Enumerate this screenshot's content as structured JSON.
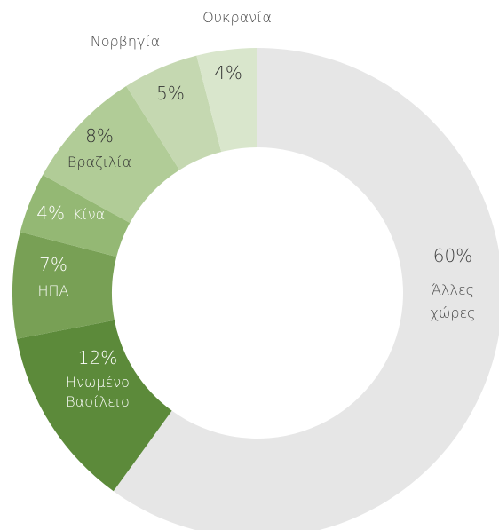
{
  "chart_data": {
    "type": "donut",
    "title": "",
    "unit": "%",
    "slices": [
      {
        "value": 60,
        "label_pct": "60%",
        "label_lines": [
          "Άλλες",
          "χώρες"
        ],
        "color": "#e6e6e6",
        "text_color": "#444444"
      },
      {
        "value": 12,
        "label_pct": "12%",
        "label_lines": [
          "Ηνωμένο",
          "Βασίλειο"
        ],
        "color": "#5c8a3a",
        "text_color": "#ffffff"
      },
      {
        "value": 7,
        "label_pct": "7%",
        "label_lines": [
          "ΗΠΑ"
        ],
        "color": "#78a055",
        "text_color": "#ffffff"
      },
      {
        "value": 4,
        "label_pct": "4%",
        "label_lines": [
          "Κίνα"
        ],
        "color": "#94b874",
        "text_color": "#ffffff"
      },
      {
        "value": 8,
        "label_pct": "8%",
        "label_lines": [
          "Βραζιλία"
        ],
        "color": "#b1cc97",
        "text_color": "#333333"
      },
      {
        "value": 5,
        "label_pct": "5%",
        "label_lines": [
          "Νορβηγία"
        ],
        "color": "#c5d8b1",
        "text_color": "#333333"
      },
      {
        "value": 4,
        "label_pct": "4%",
        "label_lines": [
          "Ουκρανία"
        ],
        "color": "#d9e6cc",
        "text_color": "#333333"
      }
    ]
  }
}
